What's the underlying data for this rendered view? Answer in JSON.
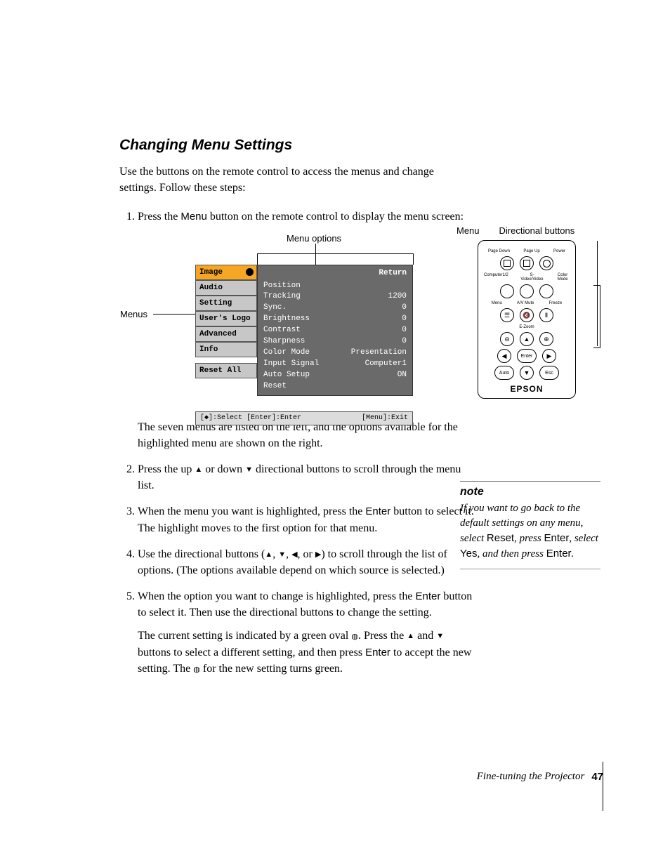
{
  "title": "Changing Menu Settings",
  "intro": "Use the buttons on the remote control to access the menus and change settings. Follow these steps:",
  "steps": {
    "s1a": "Press the ",
    "s1b": "Menu",
    "s1c": " button on the remote control to display the menu screen:",
    "s1after": "The seven menus are listed on the left, and the options available for the highlighted menu are shown on the right.",
    "s2a": "Press the up ",
    "s2b": " or down ",
    "s2c": " directional buttons to scroll through the menu list.",
    "s3a": "When the menu you want is highlighted, press the ",
    "s3b": "Enter",
    "s3c": " button to select it. The highlight moves to the first option for that menu.",
    "s4a": "Use the directional buttons (",
    "s4b": ") to scroll through the list of options. (The options available depend on which source is selected.)",
    "s5a": "When the option you want to change is highlighted, press the ",
    "s5b": "Enter",
    "s5c": " button to select it. Then use the directional buttons to change the setting.",
    "s5d1": "The current setting is indicated by a green oval ",
    "s5d2": ". Press the ",
    "s5d3": " and ",
    "s5d4": " buttons to select a different setting, and then press ",
    "s5e": "Enter",
    "s5f": " to accept the new setting. The ",
    "s5g": " for the new setting turns green."
  },
  "labels": {
    "menu_options": "Menu options",
    "menus": "Menus",
    "menu": "Menu",
    "directional": "Directional buttons"
  },
  "osd": {
    "menus": [
      "Image",
      "Audio",
      "Setting",
      "User's Logo",
      "Advanced",
      "Info",
      "Reset All"
    ],
    "return": "Return",
    "rows": [
      [
        "Position",
        ""
      ],
      [
        "Tracking",
        "1200"
      ],
      [
        "Sync.",
        "0"
      ],
      [
        "Brightness",
        "0"
      ],
      [
        "Contrast",
        "0"
      ],
      [
        "Sharpness",
        "0"
      ],
      [
        "Color Mode",
        "Presentation"
      ],
      [
        "Input Signal",
        "Computer1"
      ],
      [
        "Auto Setup",
        "ON"
      ],
      [
        "Reset",
        ""
      ]
    ],
    "footer_left": "[◆]:Select [Enter]:Enter",
    "footer_right": "[Menu]:Exit"
  },
  "remote": {
    "row1": [
      "Page Down",
      "Page Up",
      "Power"
    ],
    "row2": [
      "Computer1/2",
      "S-Video/Video",
      "Color Mode"
    ],
    "row3": [
      "Menu",
      "A/V Mute",
      "Freeze"
    ],
    "ezoom": "E-Zoom",
    "auto": "Auto",
    "enter": "Enter",
    "esc": "Esc",
    "brand": "EPSON"
  },
  "note": {
    "title": "note",
    "body1": "If you want to go back to the default settings on any menu, select ",
    "reset": "Reset",
    "body2": ", press ",
    "enter": "Enter",
    "body3": ", select ",
    "yes": "Yes",
    "body4": ", and then press ",
    "body5": "."
  },
  "footer": {
    "text": "Fine-tuning the Projector",
    "page": "47"
  },
  "glyphs": {
    "up": "▲",
    "down": "▼",
    "left": "◀",
    "right": "▶",
    "oval": "◍",
    "comma": ", ",
    "or": ", or "
  }
}
